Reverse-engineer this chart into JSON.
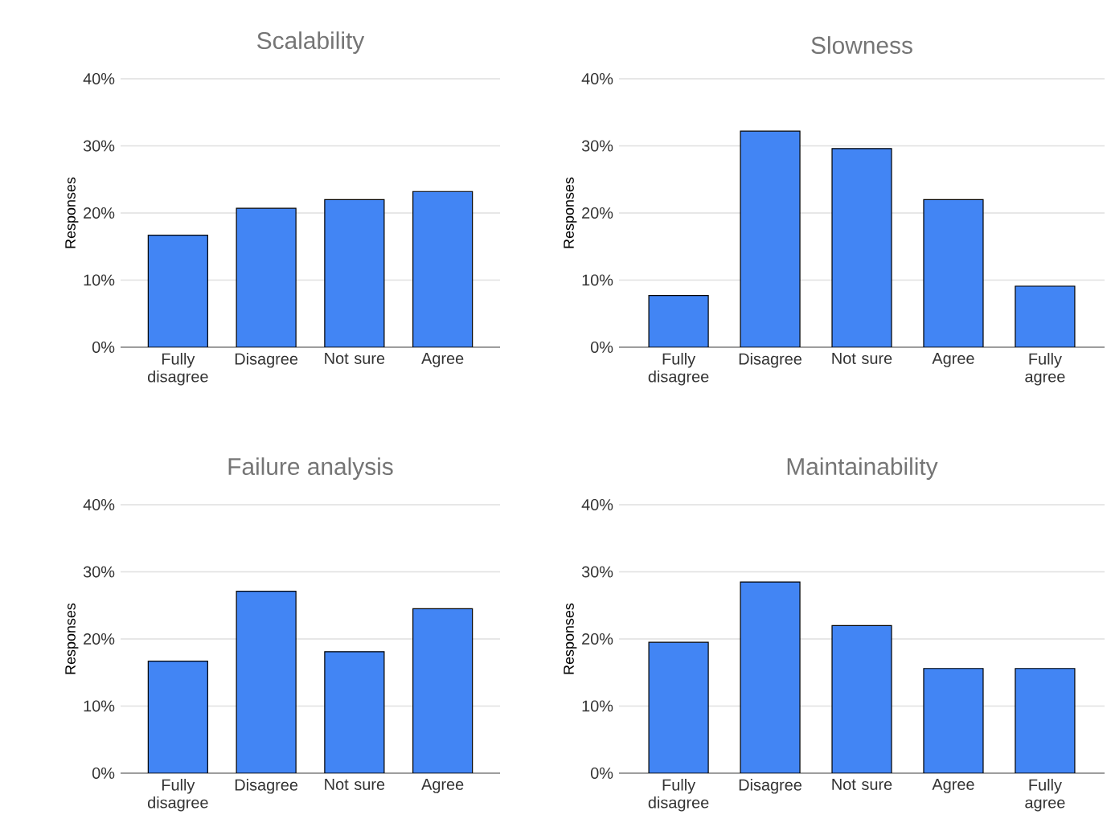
{
  "chart_data": [
    {
      "type": "bar",
      "title": "Scalability",
      "ylabel": "Responses",
      "categories": [
        "Fully disagree",
        "Disagree",
        "Not sure",
        "Agree"
      ],
      "values": [
        16.7,
        20.7,
        22.0,
        23.2
      ],
      "color": "#4285f4",
      "ylim": [
        0,
        40
      ],
      "yticks": [
        {
          "value": 0,
          "label": "0%"
        },
        {
          "value": 10,
          "label": "10%"
        },
        {
          "value": 20,
          "label": "20%"
        },
        {
          "value": 30,
          "label": "30%"
        },
        {
          "value": 40,
          "label": "40%"
        }
      ],
      "grid": "y"
    },
    {
      "type": "bar",
      "title": "Slowness",
      "ylabel": "Responses",
      "categories": [
        "Fully disagree",
        "Disagree",
        "Not sure",
        "Agree",
        "Fully agree"
      ],
      "values": [
        7.7,
        32.2,
        29.6,
        22.0,
        9.1
      ],
      "color": "#4285f4",
      "ylim": [
        0,
        40
      ],
      "yticks": [
        {
          "value": 0,
          "label": "0%"
        },
        {
          "value": 10,
          "label": "10%"
        },
        {
          "value": 20,
          "label": "20%"
        },
        {
          "value": 30,
          "label": "30%"
        },
        {
          "value": 40,
          "label": "40%"
        }
      ],
      "grid": "y"
    },
    {
      "type": "bar",
      "title": "Failure analysis",
      "ylabel": "Responses",
      "categories": [
        "Fully disagree",
        "Disagree",
        "Not sure",
        "Agree"
      ],
      "values": [
        16.7,
        27.1,
        18.1,
        24.5
      ],
      "color": "#4285f4",
      "ylim": [
        0,
        40
      ],
      "yticks": [
        {
          "value": 0,
          "label": "0%"
        },
        {
          "value": 10,
          "label": "10%"
        },
        {
          "value": 20,
          "label": "20%"
        },
        {
          "value": 30,
          "label": "30%"
        },
        {
          "value": 40,
          "label": "40%"
        }
      ],
      "grid": "y"
    },
    {
      "type": "bar",
      "title": "Maintainability",
      "ylabel": "Responses",
      "categories": [
        "Fully disagree",
        "Disagree",
        "Not sure",
        "Agree",
        "Fully agree"
      ],
      "values": [
        19.5,
        28.5,
        22.0,
        15.6,
        15.6
      ],
      "color": "#4285f4",
      "ylim": [
        0,
        40
      ],
      "yticks": [
        {
          "value": 0,
          "label": "0%"
        },
        {
          "value": 10,
          "label": "10%"
        },
        {
          "value": 20,
          "label": "20%"
        },
        {
          "value": 30,
          "label": "30%"
        },
        {
          "value": 40,
          "label": "40%"
        }
      ],
      "grid": "y"
    }
  ]
}
